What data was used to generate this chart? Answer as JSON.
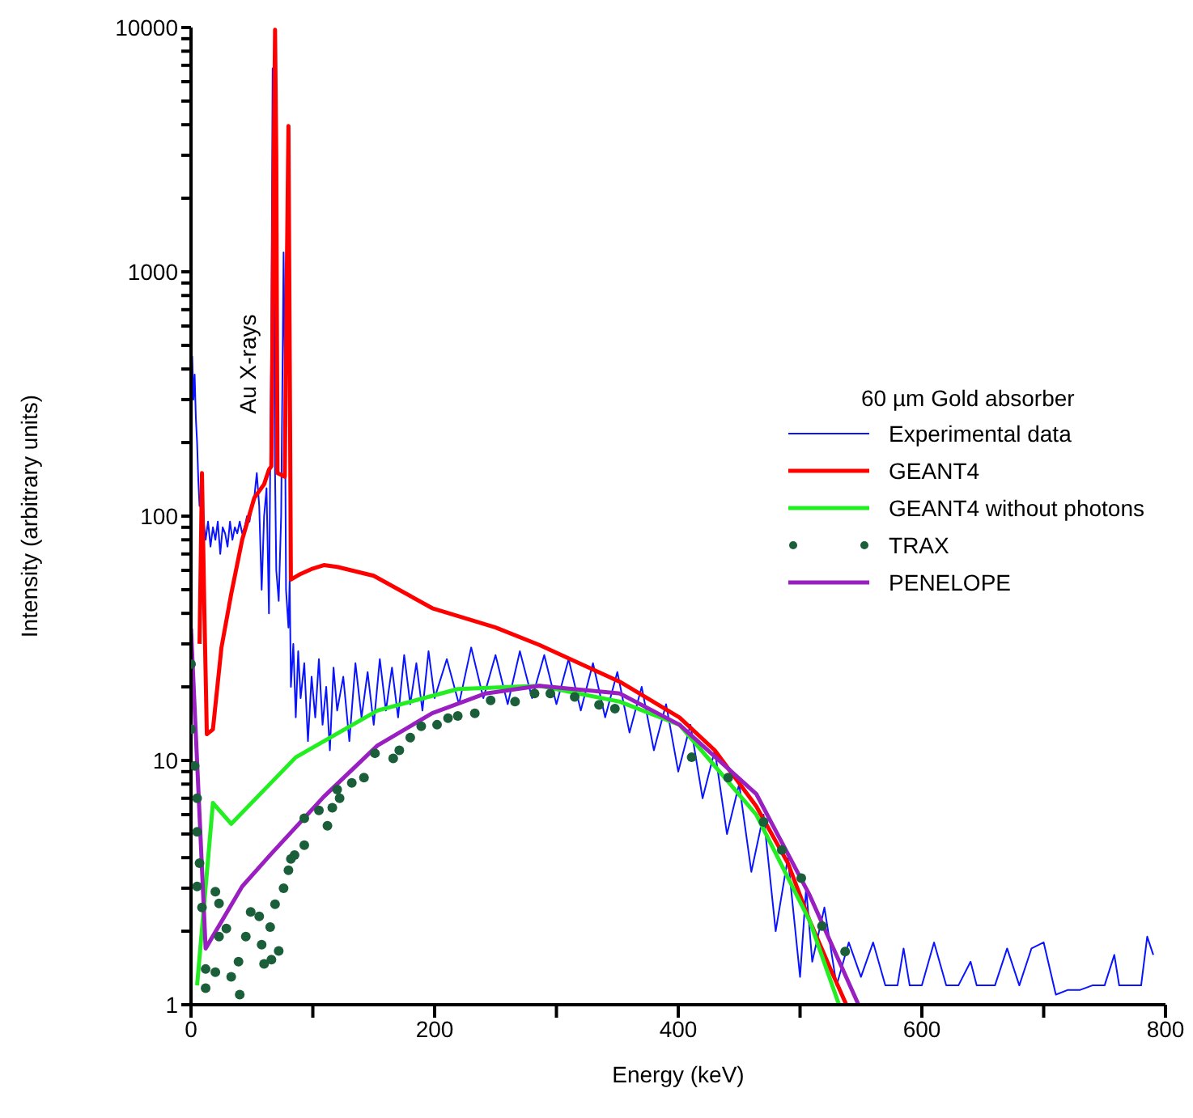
{
  "chart_data": {
    "type": "line",
    "xlabel": "Energy (keV)",
    "ylabel": "Intensity (arbitrary units)",
    "legend_title": "60 µm Gold absorber",
    "legend": "right",
    "log": "y",
    "grid": false,
    "xlim": [
      0,
      800
    ],
    "xticks": [
      0,
      {
        "value": 100,
        "label": null
      },
      200,
      {
        "value": 300,
        "label": null
      },
      400,
      {
        "value": 500,
        "label": null
      },
      600,
      {
        "value": 700,
        "label": null
      },
      800
    ],
    "ylim": [
      1,
      10000
    ],
    "yticks": [
      1,
      {
        "value": 2,
        "label": null
      },
      {
        "value": 3,
        "label": null
      },
      {
        "value": 4,
        "label": null
      },
      {
        "value": 5,
        "label": null
      },
      {
        "value": 6,
        "label": null
      },
      {
        "value": 7,
        "label": null
      },
      {
        "value": 8,
        "label": null
      },
      {
        "value": 9,
        "label": null
      },
      10,
      {
        "value": 20,
        "label": null
      },
      {
        "value": 30,
        "label": null
      },
      {
        "value": 40,
        "label": null
      },
      {
        "value": 50,
        "label": null
      },
      {
        "value": 60,
        "label": null
      },
      {
        "value": 70,
        "label": null
      },
      {
        "value": 80,
        "label": null
      },
      {
        "value": 90,
        "label": null
      },
      100,
      {
        "value": 200,
        "label": null
      },
      {
        "value": 300,
        "label": null
      },
      {
        "value": 400,
        "label": null
      },
      {
        "value": 500,
        "label": null
      },
      {
        "value": 600,
        "label": null
      },
      {
        "value": 700,
        "label": null
      },
      {
        "value": 800,
        "label": null
      },
      {
        "value": 900,
        "label": null
      },
      1000,
      {
        "value": 2000,
        "label": null
      },
      {
        "value": 3000,
        "label": null
      },
      {
        "value": 4000,
        "label": null
      },
      {
        "value": 5000,
        "label": null
      },
      {
        "value": 6000,
        "label": null
      },
      {
        "value": 7000,
        "label": null
      },
      {
        "value": 8000,
        "label": null
      },
      {
        "value": 9000,
        "label": null
      },
      10000
    ],
    "annotations": [
      "Au X-rays"
    ],
    "series": [
      {
        "name": "Experimental data",
        "color": "#0a14ff",
        "x": [
          0,
          1,
          2,
          3,
          4,
          5,
          6,
          7,
          8,
          9,
          10,
          12,
          14,
          16,
          18,
          20,
          22,
          24,
          26,
          28,
          30,
          32,
          34,
          36,
          38,
          40,
          42,
          44,
          46,
          48,
          50,
          52,
          54,
          56,
          58,
          60,
          62,
          64,
          66,
          67,
          68,
          69,
          70,
          72,
          74,
          76,
          77,
          78,
          80,
          81,
          82,
          84,
          86,
          88,
          90,
          93,
          96,
          99,
          102,
          105,
          108,
          111,
          114,
          117,
          120,
          125,
          130,
          135,
          140,
          145,
          150,
          155,
          160,
          165,
          170,
          175,
          180,
          185,
          190,
          195,
          200,
          210,
          220,
          230,
          240,
          250,
          260,
          270,
          280,
          290,
          300,
          310,
          320,
          330,
          340,
          350,
          360,
          370,
          380,
          390,
          400,
          410,
          420,
          430,
          440,
          450,
          460,
          470,
          480,
          490,
          500,
          505,
          510,
          520,
          530,
          540,
          550,
          560,
          570,
          580,
          585,
          590,
          600,
          610,
          620,
          630,
          640,
          645,
          660,
          670,
          680,
          690,
          700,
          710,
          720,
          730,
          740,
          750,
          758,
          762,
          780,
          785,
          790
        ],
        "values": [
          350,
          450,
          300,
          380,
          250,
          200,
          140,
          110,
          120,
          95,
          100,
          80,
          95,
          75,
          90,
          80,
          95,
          70,
          90,
          85,
          75,
          95,
          80,
          90,
          85,
          95,
          85,
          90,
          100,
          95,
          110,
          120,
          150,
          110,
          50,
          100,
          130,
          40,
          600,
          6800,
          2000,
          150,
          60,
          45,
          100,
          1200,
          400,
          50,
          35,
          55,
          20,
          30,
          15,
          28,
          18,
          25,
          12,
          22,
          15,
          26,
          14,
          20,
          11,
          24,
          16,
          22,
          12,
          25,
          15,
          23,
          14,
          26,
          16,
          24,
          15,
          27,
          17,
          25,
          16,
          28,
          18,
          26,
          17,
          29,
          18,
          27,
          17,
          28,
          18,
          27,
          17,
          26,
          16,
          25,
          15,
          23,
          13,
          20,
          11,
          17,
          9,
          14,
          7,
          11,
          5,
          8,
          3.5,
          6,
          2,
          4,
          1.3,
          3,
          1.5,
          2.5,
          1.2,
          1.8,
          1.3,
          1.8,
          1.2,
          1.2,
          1.7,
          1.2,
          1.2,
          1.8,
          1.2,
          1.2,
          1.5,
          1.2,
          1.2,
          1.7,
          1.2,
          1.7,
          1.8,
          1.1,
          1.15,
          1.15,
          1.2,
          1.2,
          1.6,
          1.2,
          1.2,
          1.9,
          1.6
        ]
      },
      {
        "name": "GEANT4",
        "color": "#ff0000",
        "x": [
          7,
          9,
          11,
          13,
          18,
          25,
          33,
          42,
          52,
          60,
          64,
          66,
          68,
          69,
          70,
          71,
          77,
          78,
          80,
          81,
          82,
          90,
          100,
          109,
          120,
          150,
          198,
          250,
          286,
          352,
          401,
          430,
          464,
          490,
          508,
          525,
          538
        ],
        "values": [
          30,
          150,
          40,
          12.8,
          13.4,
          29,
          48,
          80,
          119,
          135,
          155,
          160,
          3000,
          9800,
          3000,
          150,
          145,
          500,
          3950,
          500,
          55,
          58,
          61,
          63,
          62,
          57,
          42,
          35,
          29.7,
          21,
          15,
          11,
          6.5,
          3.8,
          2.2,
          1.4,
          1
        ]
      },
      {
        "name": "GEANT4 without photons",
        "color": "#22ee22",
        "x": [
          5,
          18,
          33,
          86,
          153,
          219,
          286,
          352,
          401,
          419,
          464,
          508,
          532
        ],
        "values": [
          1.2,
          6.7,
          5.5,
          10.3,
          16,
          19.6,
          20.2,
          17.4,
          14,
          11,
          6,
          2.2,
          1
        ]
      },
      {
        "name": "TRAX",
        "type": "scatter",
        "marker": "circle",
        "color": "#1a5e3a",
        "x": [
          0,
          0,
          3,
          5,
          5,
          7,
          5,
          9,
          12,
          12,
          20,
          23,
          23,
          20,
          29,
          33,
          39,
          40,
          45,
          49,
          56,
          58,
          60,
          65,
          66,
          72,
          69,
          76,
          80,
          82,
          85,
          93,
          93,
          105,
          112,
          116,
          122,
          120,
          132,
          142,
          151,
          166,
          171,
          180,
          189,
          202,
          211,
          219,
          233,
          246,
          266,
          282,
          295,
          315,
          335,
          348,
          411,
          441,
          470,
          485,
          501,
          518,
          537
        ],
        "values": [
          24.8,
          13.4,
          9.5,
          7,
          5.1,
          3.8,
          3.05,
          2.5,
          1.4,
          1.17,
          2.9,
          2.6,
          1.9,
          1.36,
          2.05,
          1.3,
          1.5,
          1.1,
          1.9,
          2.4,
          2.3,
          1.76,
          1.47,
          2.08,
          1.53,
          1.66,
          2.58,
          3,
          3.55,
          3.95,
          4.1,
          4.5,
          5.8,
          6.25,
          5.4,
          6.4,
          7,
          7.6,
          8.1,
          8.5,
          10.7,
          10.2,
          11,
          12.4,
          13.8,
          14,
          14.9,
          15.2,
          15.6,
          17.6,
          17.4,
          18.8,
          18.8,
          18.2,
          16.9,
          16.3,
          10.3,
          8.5,
          5.6,
          4.3,
          3.3,
          2.1,
          1.65
        ]
      },
      {
        "name": "PENELOPE",
        "color": "#9a1fc0",
        "x": [
          0,
          12,
          42,
          65,
          109,
          153,
          198,
          242,
          286,
          352,
          401,
          464,
          508,
          548
        ],
        "values": [
          34.7,
          1.7,
          3.05,
          4.1,
          7.1,
          11.5,
          15.6,
          18.8,
          20.2,
          18.8,
          14,
          7.3,
          2.8,
          1
        ]
      }
    ]
  }
}
